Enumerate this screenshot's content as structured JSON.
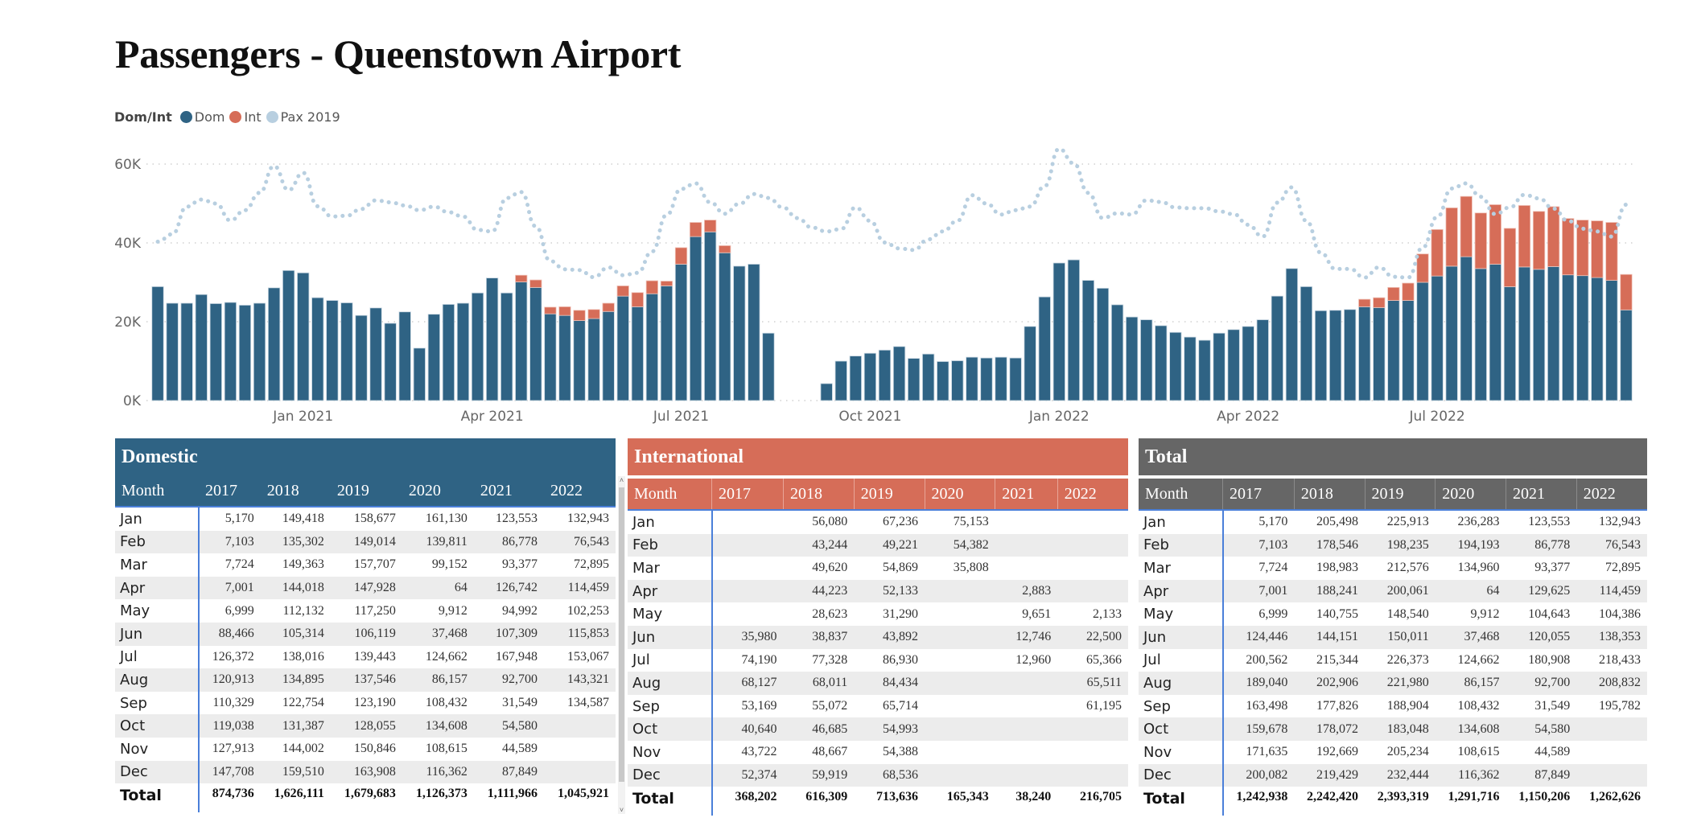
{
  "title": "Passengers - Queenstown Airport",
  "legend": {
    "title": "Dom/Int",
    "items": [
      {
        "label": "Dom",
        "color": "#2f6384"
      },
      {
        "label": "Int",
        "color": "#d66d58"
      },
      {
        "label": "Pax 2019",
        "color": "#b8cfe0"
      }
    ]
  },
  "chart_data": {
    "type": "bar",
    "subtype": "stacked-bar-with-line",
    "title": "",
    "xlabel": "",
    "ylabel": "",
    "ylim": [
      0,
      65000
    ],
    "yticks": [
      0,
      20000,
      40000,
      60000
    ],
    "ytick_labels": [
      "0K",
      "20K",
      "40K",
      "60K"
    ],
    "grid": true,
    "legend_position": "top-left",
    "x_tick_labels": [
      {
        "label": "Jan 2021",
        "at_index": 10.5
      },
      {
        "label": "Apr 2021",
        "at_index": 23.5
      },
      {
        "label": "Jul 2021",
        "at_index": 36.5
      },
      {
        "label": "Oct 2021",
        "at_index": 49.5
      },
      {
        "label": "Jan 2022",
        "at_index": 62.5
      },
      {
        "label": "Apr 2022",
        "at_index": 75.5
      },
      {
        "label": "Jul 2022",
        "at_index": 88.5
      }
    ],
    "x_unit": "week",
    "series": [
      {
        "name": "Dom",
        "type": "bar",
        "color": "#2f6384",
        "values": [
          28900,
          24700,
          24700,
          26900,
          24600,
          24900,
          24200,
          24700,
          28600,
          33000,
          32400,
          26100,
          25400,
          24800,
          21600,
          23500,
          19600,
          22500,
          13300,
          21900,
          24400,
          24700,
          27300,
          31100,
          27300,
          30100,
          28700,
          22000,
          21600,
          20300,
          20800,
          22600,
          26500,
          23800,
          27100,
          29100,
          34600,
          41600,
          42800,
          37500,
          34100,
          34600,
          17100,
          null,
          null,
          null,
          4300,
          10000,
          11300,
          12000,
          12800,
          13700,
          10700,
          11800,
          9900,
          10100,
          11000,
          10800,
          11000,
          10800,
          18800,
          26300,
          34900,
          35700,
          30500,
          28500,
          24300,
          21200,
          20500,
          19000,
          17300,
          16100,
          15300,
          17100,
          18000,
          18800,
          20500,
          26500,
          33500,
          28900,
          22800,
          22900,
          23100,
          23800,
          23600,
          25400,
          25400,
          30000,
          31600,
          34100,
          36500,
          33500,
          34600,
          28900,
          33900,
          33300,
          34000,
          31900,
          31700,
          31200,
          30500,
          23000
        ]
      },
      {
        "name": "Int",
        "type": "bar",
        "color": "#d66d58",
        "values": [
          0,
          0,
          0,
          0,
          0,
          0,
          0,
          0,
          0,
          0,
          0,
          0,
          0,
          0,
          0,
          0,
          0,
          0,
          0,
          0,
          0,
          0,
          0,
          0,
          0,
          1700,
          1900,
          1700,
          2200,
          2600,
          2300,
          2100,
          2600,
          3600,
          3300,
          1200,
          4200,
          3600,
          3000,
          1800,
          0,
          0,
          0,
          null,
          null,
          null,
          0,
          0,
          0,
          0,
          0,
          0,
          0,
          0,
          0,
          0,
          0,
          0,
          0,
          0,
          0,
          0,
          0,
          0,
          0,
          0,
          0,
          0,
          0,
          0,
          0,
          0,
          0,
          0,
          0,
          0,
          0,
          0,
          0,
          0,
          0,
          0,
          0,
          1900,
          2500,
          3300,
          4400,
          7200,
          11800,
          14800,
          15300,
          14100,
          15100,
          14800,
          15600,
          14700,
          15200,
          14300,
          14100,
          14400,
          14700,
          9000
        ]
      },
      {
        "name": "Pax 2019",
        "type": "line",
        "style": "dotted",
        "color": "#b8cfe0",
        "values": [
          40300,
          42200,
          49200,
          51000,
          50000,
          45700,
          48300,
          52700,
          59500,
          53400,
          57800,
          49300,
          46700,
          46900,
          48600,
          50800,
          50300,
          49500,
          48300,
          49200,
          47800,
          46700,
          43300,
          42900,
          51400,
          52900,
          44200,
          35400,
          33300,
          33100,
          31300,
          33800,
          31800,
          32400,
          37800,
          47100,
          53700,
          55100,
          50300,
          47400,
          49900,
          52400,
          51400,
          49000,
          46300,
          43900,
          42900,
          43500,
          49000,
          45600,
          40100,
          38600,
          38200,
          40900,
          42900,
          45600,
          52100,
          50000,
          47200,
          48300,
          49200,
          54400,
          63900,
          60200,
          52700,
          46300,
          47500,
          47200,
          50800,
          50400,
          49000,
          48800,
          48800,
          48000,
          47300,
          44600,
          41600,
          50200,
          54100,
          45600,
          37500,
          33400,
          33400,
          31200,
          33800,
          31400,
          31200,
          38800,
          46600,
          53800,
          55100,
          51700,
          47300,
          49000,
          52200,
          51300,
          48700,
          45600,
          43600,
          42900,
          41600,
          49700
        ]
      }
    ]
  },
  "tables": {
    "domestic": {
      "title": "Domestic",
      "headers": [
        "Month",
        "2017",
        "2018",
        "2019",
        "2020",
        "2021",
        "2022"
      ],
      "rows": [
        [
          "Jan",
          "5,170",
          "149,418",
          "158,677",
          "161,130",
          "123,553",
          "132,943"
        ],
        [
          "Feb",
          "7,103",
          "135,302",
          "149,014",
          "139,811",
          "86,778",
          "76,543"
        ],
        [
          "Mar",
          "7,724",
          "149,363",
          "157,707",
          "99,152",
          "93,377",
          "72,895"
        ],
        [
          "Apr",
          "7,001",
          "144,018",
          "147,928",
          "64",
          "126,742",
          "114,459"
        ],
        [
          "May",
          "6,999",
          "112,132",
          "117,250",
          "9,912",
          "94,992",
          "102,253"
        ],
        [
          "Jun",
          "88,466",
          "105,314",
          "106,119",
          "37,468",
          "107,309",
          "115,853"
        ],
        [
          "Jul",
          "126,372",
          "138,016",
          "139,443",
          "124,662",
          "167,948",
          "153,067"
        ],
        [
          "Aug",
          "120,913",
          "134,895",
          "137,546",
          "86,157",
          "92,700",
          "143,321"
        ],
        [
          "Sep",
          "110,329",
          "122,754",
          "123,190",
          "108,432",
          "31,549",
          "134,587"
        ],
        [
          "Oct",
          "119,038",
          "131,387",
          "128,055",
          "134,608",
          "54,580",
          ""
        ],
        [
          "Nov",
          "127,913",
          "144,002",
          "150,846",
          "108,615",
          "44,589",
          ""
        ],
        [
          "Dec",
          "147,708",
          "159,510",
          "163,908",
          "116,362",
          "87,849",
          ""
        ]
      ],
      "total": [
        "Total",
        "874,736",
        "1,626,111",
        "1,679,683",
        "1,126,373",
        "1,111,966",
        "1,045,921"
      ]
    },
    "international": {
      "title": "International",
      "headers": [
        "Month",
        "2017",
        "2018",
        "2019",
        "2020",
        "2021",
        "2022"
      ],
      "rows": [
        [
          "Jan",
          "",
          "56,080",
          "67,236",
          "75,153",
          "",
          ""
        ],
        [
          "Feb",
          "",
          "43,244",
          "49,221",
          "54,382",
          "",
          ""
        ],
        [
          "Mar",
          "",
          "49,620",
          "54,869",
          "35,808",
          "",
          ""
        ],
        [
          "Apr",
          "",
          "44,223",
          "52,133",
          "",
          "2,883",
          ""
        ],
        [
          "May",
          "",
          "28,623",
          "31,290",
          "",
          "9,651",
          "2,133"
        ],
        [
          "Jun",
          "35,980",
          "38,837",
          "43,892",
          "",
          "12,746",
          "22,500"
        ],
        [
          "Jul",
          "74,190",
          "77,328",
          "86,930",
          "",
          "12,960",
          "65,366"
        ],
        [
          "Aug",
          "68,127",
          "68,011",
          "84,434",
          "",
          "",
          "65,511"
        ],
        [
          "Sep",
          "53,169",
          "55,072",
          "65,714",
          "",
          "",
          "61,195"
        ],
        [
          "Oct",
          "40,640",
          "46,685",
          "54,993",
          "",
          "",
          ""
        ],
        [
          "Nov",
          "43,722",
          "48,667",
          "54,388",
          "",
          "",
          ""
        ],
        [
          "Dec",
          "52,374",
          "59,919",
          "68,536",
          "",
          "",
          ""
        ]
      ],
      "total": [
        "Total",
        "368,202",
        "616,309",
        "713,636",
        "165,343",
        "38,240",
        "216,705"
      ]
    },
    "total": {
      "title": "Total",
      "headers": [
        "Month",
        "2017",
        "2018",
        "2019",
        "2020",
        "2021",
        "2022"
      ],
      "rows": [
        [
          "Jan",
          "5,170",
          "205,498",
          "225,913",
          "236,283",
          "123,553",
          "132,943"
        ],
        [
          "Feb",
          "7,103",
          "178,546",
          "198,235",
          "194,193",
          "86,778",
          "76,543"
        ],
        [
          "Mar",
          "7,724",
          "198,983",
          "212,576",
          "134,960",
          "93,377",
          "72,895"
        ],
        [
          "Apr",
          "7,001",
          "188,241",
          "200,061",
          "64",
          "129,625",
          "114,459"
        ],
        [
          "May",
          "6,999",
          "140,755",
          "148,540",
          "9,912",
          "104,643",
          "104,386"
        ],
        [
          "Jun",
          "124,446",
          "144,151",
          "150,011",
          "37,468",
          "120,055",
          "138,353"
        ],
        [
          "Jul",
          "200,562",
          "215,344",
          "226,373",
          "124,662",
          "180,908",
          "218,433"
        ],
        [
          "Aug",
          "189,040",
          "202,906",
          "221,980",
          "86,157",
          "92,700",
          "208,832"
        ],
        [
          "Sep",
          "163,498",
          "177,826",
          "188,904",
          "108,432",
          "31,549",
          "195,782"
        ],
        [
          "Oct",
          "159,678",
          "178,072",
          "183,048",
          "134,608",
          "54,580",
          ""
        ],
        [
          "Nov",
          "171,635",
          "192,669",
          "205,234",
          "108,615",
          "44,589",
          ""
        ],
        [
          "Dec",
          "200,082",
          "219,429",
          "232,444",
          "116,362",
          "87,849",
          ""
        ]
      ],
      "total": [
        "Total",
        "1,242,938",
        "2,242,420",
        "2,393,319",
        "1,291,716",
        "1,150,206",
        "1,262,626"
      ]
    }
  },
  "scrollbar": {
    "up_icon": "˄",
    "down_icon": "˅"
  }
}
